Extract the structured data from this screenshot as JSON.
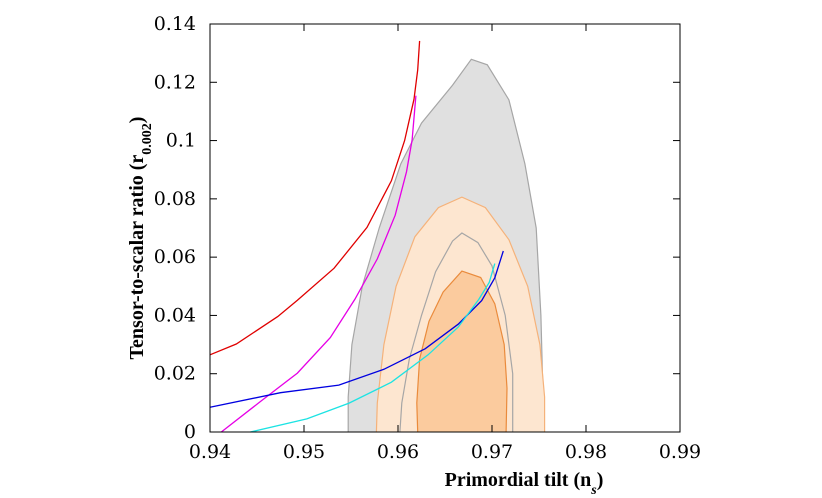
{
  "chart_data": {
    "type": "line",
    "xlabel": "Primordial tilt (n",
    "xlabel_sub": "s",
    "xlabel_close": ")",
    "ylabel": "Tensor-to-scalar ratio (r",
    "ylabel_sub": "0.002",
    "ylabel_close": ")",
    "xlim": [
      0.94,
      0.99
    ],
    "ylim": [
      0,
      0.14
    ],
    "x_ticks": [
      0.94,
      0.95,
      0.96,
      0.97,
      0.98,
      0.99
    ],
    "x_tick_labels": [
      "0.94",
      "0.95",
      "0.96",
      "0.97",
      "0.98",
      "0.99"
    ],
    "y_ticks": [
      0,
      0.02,
      0.04,
      0.06,
      0.08,
      0.1,
      0.12,
      0.14
    ],
    "y_tick_labels": [
      "0",
      "0.02",
      "0.04",
      "0.06",
      "0.08",
      "0.1",
      "0.12",
      "0.14"
    ],
    "grid": false,
    "contours": [
      {
        "color": "#e0e0e0",
        "stroke": "#a6a6a6",
        "points": [
          [
            0.9547,
            0
          ],
          [
            0.9547,
            0.012
          ],
          [
            0.9551,
            0.03
          ],
          [
            0.9562,
            0.05
          ],
          [
            0.958,
            0.07
          ],
          [
            0.9603,
            0.092
          ],
          [
            0.9625,
            0.106
          ],
          [
            0.9658,
            0.119
          ],
          [
            0.9678,
            0.1279
          ],
          [
            0.9695,
            0.126
          ],
          [
            0.9718,
            0.114
          ],
          [
            0.9735,
            0.092
          ],
          [
            0.9747,
            0.07
          ],
          [
            0.9752,
            0.04
          ],
          [
            0.9754,
            0.015
          ],
          [
            0.9754,
            0
          ]
        ]
      },
      {
        "color": "#fde6d0",
        "stroke": "#f5b27a",
        "points": [
          [
            0.9577,
            0
          ],
          [
            0.9578,
            0.01
          ],
          [
            0.9585,
            0.03
          ],
          [
            0.9598,
            0.05
          ],
          [
            0.9618,
            0.067
          ],
          [
            0.9643,
            0.077
          ],
          [
            0.9668,
            0.0806
          ],
          [
            0.9693,
            0.077
          ],
          [
            0.9718,
            0.066
          ],
          [
            0.9738,
            0.05
          ],
          [
            0.9751,
            0.03
          ],
          [
            0.9756,
            0.012
          ],
          [
            0.9756,
            0
          ]
        ]
      },
      {
        "color": "none",
        "stroke": "#a6a6a6",
        "points": [
          [
            0.9602,
            0
          ],
          [
            0.9604,
            0.01
          ],
          [
            0.9612,
            0.025
          ],
          [
            0.9625,
            0.04
          ],
          [
            0.964,
            0.055
          ],
          [
            0.9658,
            0.0655
          ],
          [
            0.9668,
            0.0683
          ],
          [
            0.9685,
            0.065
          ],
          [
            0.97,
            0.057
          ],
          [
            0.9714,
            0.04
          ],
          [
            0.9722,
            0.02
          ],
          [
            0.9722,
            0
          ]
        ]
      },
      {
        "color": "#fbcb9e",
        "stroke": "#ea8b3c",
        "points": [
          [
            0.9621,
            0
          ],
          [
            0.962,
            0.01
          ],
          [
            0.9623,
            0.025
          ],
          [
            0.9633,
            0.038
          ],
          [
            0.9648,
            0.048
          ],
          [
            0.9668,
            0.0552
          ],
          [
            0.9688,
            0.053
          ],
          [
            0.9703,
            0.044
          ],
          [
            0.9713,
            0.03
          ],
          [
            0.9716,
            0.015
          ],
          [
            0.9715,
            0
          ]
        ]
      }
    ],
    "series": [
      {
        "color": "#e00000",
        "points": [
          [
            0.94,
            0.0265
          ],
          [
            0.9428,
            0.0302
          ],
          [
            0.9472,
            0.0396
          ],
          [
            0.9493,
            0.0452
          ],
          [
            0.9532,
            0.0562
          ],
          [
            0.9567,
            0.0702
          ],
          [
            0.9593,
            0.0862
          ],
          [
            0.9607,
            0.1
          ],
          [
            0.9617,
            0.1142
          ],
          [
            0.9621,
            0.1242
          ],
          [
            0.9623,
            0.1342
          ]
        ]
      },
      {
        "color": "#e600e6",
        "points": [
          [
            0.9412,
            0
          ],
          [
            0.9453,
            0.0103
          ],
          [
            0.9493,
            0.0202
          ],
          [
            0.9528,
            0.0324
          ],
          [
            0.9554,
            0.0455
          ],
          [
            0.9578,
            0.0594
          ],
          [
            0.9597,
            0.0744
          ],
          [
            0.9609,
            0.0893
          ],
          [
            0.9615,
            0.1002
          ],
          [
            0.9619,
            0.1154
          ]
        ]
      },
      {
        "color": "#0000e0",
        "points": [
          [
            0.94,
            0.0085
          ],
          [
            0.9475,
            0.0135
          ],
          [
            0.9537,
            0.0161
          ],
          [
            0.9585,
            0.0215
          ],
          [
            0.9629,
            0.0286
          ],
          [
            0.9664,
            0.037
          ],
          [
            0.9689,
            0.0451
          ],
          [
            0.9703,
            0.0529
          ],
          [
            0.9712,
            0.0621
          ]
        ]
      },
      {
        "color": "#1ce3e3",
        "points": [
          [
            0.9443,
            0
          ],
          [
            0.9503,
            0.0045
          ],
          [
            0.9548,
            0.0099
          ],
          [
            0.9593,
            0.0171
          ],
          [
            0.9632,
            0.0265
          ],
          [
            0.9664,
            0.036
          ],
          [
            0.9686,
            0.0455
          ],
          [
            0.9697,
            0.0513
          ],
          [
            0.9703,
            0.0578
          ]
        ]
      }
    ]
  }
}
